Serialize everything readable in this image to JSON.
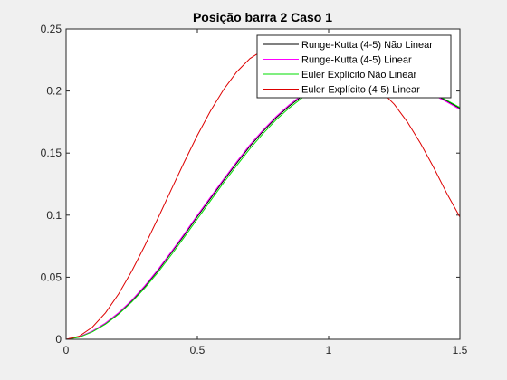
{
  "chart_data": {
    "type": "line",
    "title": "Posição barra 2 Caso 1",
    "xlabel": "",
    "ylabel": "",
    "xlim": [
      0,
      1.5
    ],
    "ylim": [
      0,
      0.25
    ],
    "xticks": [
      0,
      0.5,
      1,
      1.5
    ],
    "xtick_labels": [
      "0",
      "0.5",
      "1",
      "1.5"
    ],
    "yticks": [
      0,
      0.05,
      0.1,
      0.15,
      0.2,
      0.25
    ],
    "ytick_labels": [
      "0",
      "0.05",
      "0.1",
      "0.15",
      "0.2",
      "0.25"
    ],
    "grid": false,
    "legend_position": "top-right",
    "series": [
      {
        "name": "Runge-Kutta (4-5) Não Linear",
        "color": "#000000",
        "x": [
          0,
          0.05,
          0.1,
          0.15,
          0.2,
          0.25,
          0.3,
          0.35,
          0.4,
          0.45,
          0.5,
          0.55,
          0.6,
          0.65,
          0.7,
          0.75,
          0.8,
          0.85,
          0.9,
          0.95,
          1.0,
          1.05,
          1.1,
          1.15,
          1.2,
          1.25,
          1.3,
          1.35,
          1.4,
          1.45,
          1.5
        ],
        "values": [
          0,
          0.0018,
          0.0064,
          0.0128,
          0.021,
          0.031,
          0.0425,
          0.0555,
          0.0695,
          0.084,
          0.099,
          0.1135,
          0.128,
          0.142,
          0.1555,
          0.1675,
          0.1785,
          0.188,
          0.196,
          0.2025,
          0.2065,
          0.209,
          0.2105,
          0.211,
          0.2105,
          0.209,
          0.2065,
          0.2025,
          0.1975,
          0.192,
          0.186
        ]
      },
      {
        "name": "Runge-Kutta (4-5) Linear",
        "color": "#ff00ff",
        "x": [
          0,
          0.05,
          0.1,
          0.15,
          0.2,
          0.25,
          0.3,
          0.35,
          0.4,
          0.45,
          0.5,
          0.55,
          0.6,
          0.65,
          0.7,
          0.75,
          0.8,
          0.85,
          0.9,
          0.95,
          1.0,
          1.05,
          1.1,
          1.15,
          1.2,
          1.25,
          1.3,
          1.35,
          1.4,
          1.45,
          1.5
        ],
        "values": [
          0,
          0.0019,
          0.0066,
          0.0131,
          0.0214,
          0.0315,
          0.0432,
          0.0563,
          0.0704,
          0.085,
          0.1,
          0.1146,
          0.1291,
          0.1431,
          0.1566,
          0.1686,
          0.1795,
          0.189,
          0.197,
          0.2032,
          0.2072,
          0.2095,
          0.2108,
          0.2111,
          0.2104,
          0.2087,
          0.206,
          0.2018,
          0.1967,
          0.1912,
          0.1852
        ]
      },
      {
        "name": "Euler Explícito Não Linear",
        "color": "#00dd00",
        "x": [
          0,
          0.05,
          0.1,
          0.15,
          0.2,
          0.25,
          0.3,
          0.35,
          0.4,
          0.45,
          0.5,
          0.55,
          0.6,
          0.65,
          0.7,
          0.75,
          0.8,
          0.85,
          0.9,
          0.95,
          1.0,
          1.05,
          1.1,
          1.15,
          1.2,
          1.25,
          1.3,
          1.35,
          1.4,
          1.45,
          1.5
        ],
        "values": [
          0,
          0.0016,
          0.006,
          0.0122,
          0.0202,
          0.03,
          0.0413,
          0.054,
          0.0678,
          0.0822,
          0.097,
          0.1116,
          0.1261,
          0.14,
          0.1535,
          0.1657,
          0.1768,
          0.1864,
          0.1946,
          0.2012,
          0.2055,
          0.2082,
          0.2099,
          0.2106,
          0.2103,
          0.2089,
          0.2066,
          0.2028,
          0.198,
          0.1926,
          0.1867
        ]
      },
      {
        "name": "Euler-Explícito (4-5) Linear",
        "color": "#dd0000",
        "x": [
          0,
          0.05,
          0.1,
          0.15,
          0.2,
          0.25,
          0.3,
          0.35,
          0.4,
          0.45,
          0.5,
          0.55,
          0.6,
          0.65,
          0.7,
          0.75,
          0.8,
          0.85,
          0.9,
          0.95,
          1.0,
          1.05,
          1.1,
          1.15,
          1.2,
          1.25,
          1.3,
          1.35,
          1.4,
          1.45,
          1.5
        ],
        "values": [
          0,
          0.0025,
          0.0098,
          0.0213,
          0.0365,
          0.0549,
          0.0755,
          0.0976,
          0.1203,
          0.1428,
          0.1643,
          0.184,
          0.2012,
          0.2154,
          0.2261,
          0.2329,
          0.2357,
          0.2344,
          0.229,
          0.2198,
          0.207,
          0.201,
          0.2085,
          0.2065,
          0.2,
          0.1893,
          0.175,
          0.1578,
          0.1384,
          0.1175,
          0.0985
        ]
      }
    ]
  }
}
